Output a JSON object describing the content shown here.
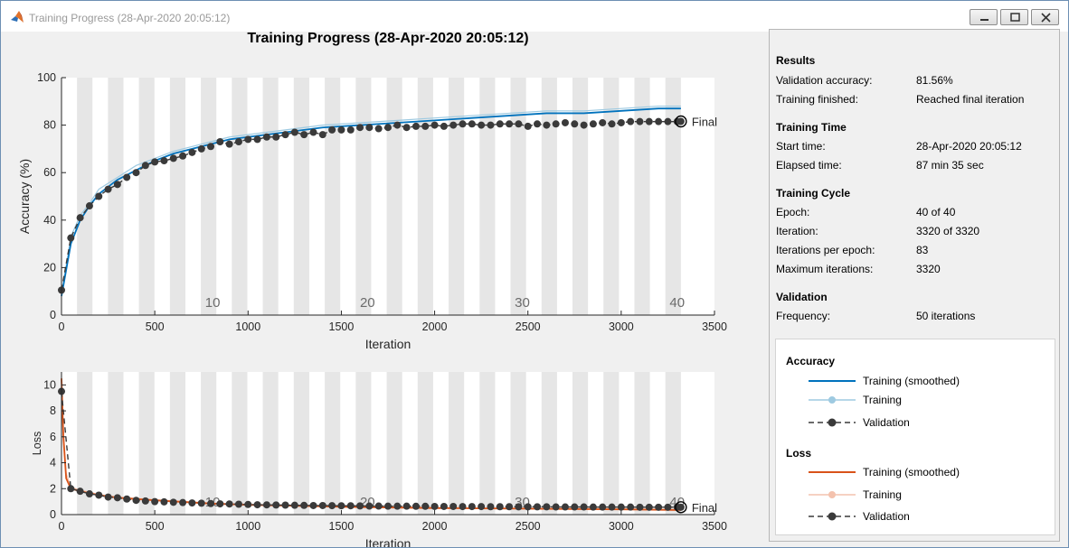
{
  "window": {
    "title": "Training Progress (28-Apr-2020 20:05:12)",
    "controls": [
      "minimize",
      "maximize",
      "close"
    ]
  },
  "figure": {
    "title": "Training Progress (28-Apr-2020 20:05:12)"
  },
  "colors": {
    "accuracy_smoothed": "#0072bd",
    "accuracy_raw": "#9ecae1",
    "validation": "#3a3a3a",
    "loss_smoothed": "#d95319",
    "loss_raw": "#f4c2ad",
    "epoch_band": "#e6e6e6"
  },
  "chart_data": [
    {
      "type": "line",
      "xlabel": "Iteration",
      "ylabel": "Accuracy (%)",
      "xlim": [
        0,
        3500
      ],
      "ylim": [
        0,
        100
      ],
      "xticks": [
        "0",
        "500",
        "1000",
        "1500",
        "2000",
        "2500",
        "3000",
        "3500"
      ],
      "yticks": [
        "0",
        "20",
        "40",
        "60",
        "80",
        "100"
      ],
      "epoch_labels": [
        "10",
        "20",
        "30",
        "40"
      ],
      "epoch_label_iterations": [
        810,
        1640,
        2470,
        3300
      ],
      "final_label": "Final",
      "series": [
        {
          "name": "Training (smoothed)",
          "x": [
            0,
            50,
            100,
            150,
            200,
            300,
            400,
            500,
            600,
            700,
            800,
            900,
            1000,
            1200,
            1400,
            1600,
            1800,
            2000,
            2200,
            2400,
            2600,
            2800,
            3000,
            3200,
            3320
          ],
          "values": [
            8,
            30,
            40,
            46,
            51,
            57,
            61,
            65,
            68,
            70,
            72,
            74,
            75,
            77,
            79,
            80,
            81,
            82,
            83,
            84,
            85,
            85,
            86,
            87,
            87
          ]
        },
        {
          "name": "Training",
          "x": [
            0,
            50,
            100,
            150,
            200,
            300,
            400,
            500,
            600,
            700,
            800,
            900,
            1000,
            1200,
            1400,
            1600,
            1800,
            2000,
            2200,
            2400,
            2600,
            2800,
            3000,
            3200,
            3320
          ],
          "values": [
            9,
            33,
            42,
            47,
            53,
            58,
            63,
            66,
            69,
            71,
            73,
            75,
            76,
            78,
            80,
            81,
            82,
            83,
            84,
            85,
            86,
            86,
            87,
            88,
            88
          ]
        },
        {
          "name": "Validation",
          "x": [
            0,
            50,
            100,
            150,
            200,
            250,
            300,
            350,
            400,
            450,
            500,
            550,
            600,
            650,
            700,
            750,
            800,
            850,
            900,
            950,
            1000,
            1050,
            1100,
            1150,
            1200,
            1250,
            1300,
            1350,
            1400,
            1450,
            1500,
            1550,
            1600,
            1650,
            1700,
            1750,
            1800,
            1850,
            1900,
            1950,
            2000,
            2050,
            2100,
            2150,
            2200,
            2250,
            2300,
            2350,
            2400,
            2450,
            2500,
            2550,
            2600,
            2650,
            2700,
            2750,
            2800,
            2850,
            2900,
            2950,
            3000,
            3050,
            3100,
            3150,
            3200,
            3250,
            3300,
            3320
          ],
          "values": [
            10.5,
            32.5,
            41,
            46,
            50,
            53,
            55,
            58,
            60,
            63,
            64.5,
            65,
            66,
            67,
            68.5,
            70,
            71,
            73,
            72,
            73,
            74,
            74,
            75,
            75,
            76,
            77,
            76,
            77,
            76,
            78,
            78,
            78,
            79,
            79,
            78.5,
            79,
            80,
            79,
            79.5,
            79.5,
            80,
            79.5,
            80,
            80.5,
            80.5,
            80,
            80,
            80.5,
            80.5,
            80.5,
            79.5,
            80.5,
            80,
            80.5,
            81,
            80.5,
            80,
            80.5,
            81,
            80.5,
            81,
            81.5,
            81.5,
            81.5,
            81.5,
            81.5,
            81.5,
            81.56
          ]
        }
      ]
    },
    {
      "type": "line",
      "xlabel": "Iteration",
      "ylabel": "Loss",
      "xlim": [
        0,
        3500
      ],
      "ylim": [
        0,
        11
      ],
      "xticks": [
        "0",
        "500",
        "1000",
        "1500",
        "2000",
        "2500",
        "3000",
        "3500"
      ],
      "yticks": [
        "0",
        "2",
        "4",
        "6",
        "8",
        "10"
      ],
      "epoch_labels": [
        "10",
        "20",
        "30",
        "40"
      ],
      "epoch_label_iterations": [
        810,
        1640,
        2470,
        3300
      ],
      "final_label": "Final",
      "series": [
        {
          "name": "Training (smoothed)",
          "x": [
            0,
            10,
            25,
            50,
            100,
            200,
            300,
            500,
            800,
            1000,
            1500,
            2000,
            2500,
            3000,
            3320
          ],
          "values": [
            10.5,
            6,
            2.8,
            2.0,
            1.8,
            1.5,
            1.3,
            1.1,
            0.85,
            0.75,
            0.6,
            0.5,
            0.45,
            0.4,
            0.35
          ]
        },
        {
          "name": "Training",
          "x": [
            0,
            10,
            25,
            50,
            100,
            200,
            300,
            500,
            800,
            1000,
            1500,
            2000,
            2500,
            3000,
            3320
          ],
          "values": [
            10.5,
            6.5,
            3.2,
            2.1,
            1.9,
            1.55,
            1.35,
            1.15,
            0.9,
            0.8,
            0.65,
            0.55,
            0.5,
            0.45,
            0.4
          ]
        },
        {
          "name": "Validation",
          "x": [
            0,
            50,
            100,
            150,
            200,
            250,
            300,
            350,
            400,
            450,
            500,
            550,
            600,
            650,
            700,
            750,
            800,
            850,
            900,
            950,
            1000,
            1050,
            1100,
            1150,
            1200,
            1250,
            1300,
            1350,
            1400,
            1450,
            1500,
            1550,
            1600,
            1650,
            1700,
            1750,
            1800,
            1850,
            1900,
            1950,
            2000,
            2050,
            2100,
            2150,
            2200,
            2250,
            2300,
            2350,
            2400,
            2450,
            2500,
            2550,
            2600,
            2650,
            2700,
            2750,
            2800,
            2850,
            2900,
            2950,
            3000,
            3050,
            3100,
            3150,
            3200,
            3250,
            3300,
            3320
          ],
          "values": [
            9.5,
            2.0,
            1.8,
            1.6,
            1.5,
            1.35,
            1.3,
            1.2,
            1.1,
            1.05,
            1.0,
            0.98,
            0.95,
            0.93,
            0.9,
            0.88,
            0.85,
            0.83,
            0.82,
            0.8,
            0.78,
            0.76,
            0.75,
            0.74,
            0.73,
            0.72,
            0.71,
            0.7,
            0.7,
            0.69,
            0.68,
            0.68,
            0.67,
            0.66,
            0.66,
            0.65,
            0.65,
            0.65,
            0.64,
            0.64,
            0.63,
            0.63,
            0.63,
            0.62,
            0.62,
            0.62,
            0.61,
            0.61,
            0.61,
            0.6,
            0.6,
            0.6,
            0.6,
            0.59,
            0.59,
            0.59,
            0.59,
            0.58,
            0.58,
            0.58,
            0.58,
            0.58,
            0.57,
            0.57,
            0.57,
            0.57,
            0.57,
            0.57
          ]
        }
      ]
    }
  ],
  "results": {
    "section_results": "Results",
    "validation_accuracy_label": "Validation accuracy:",
    "validation_accuracy_value": "81.56%",
    "training_finished_label": "Training finished:",
    "training_finished_value": "Reached final iteration",
    "section_time": "Training Time",
    "start_time_label": "Start time:",
    "start_time_value": "28-Apr-2020 20:05:12",
    "elapsed_label": "Elapsed time:",
    "elapsed_value": "87 min 35 sec",
    "section_cycle": "Training Cycle",
    "epoch_label": "Epoch:",
    "epoch_value": "40 of 40",
    "iteration_label": "Iteration:",
    "iteration_value": "3320 of 3320",
    "ipe_label": "Iterations per epoch:",
    "ipe_value": "83",
    "max_iter_label": "Maximum iterations:",
    "max_iter_value": "3320",
    "section_validation": "Validation",
    "frequency_label": "Frequency:",
    "frequency_value": "50 iterations"
  },
  "legend": {
    "accuracy_title": "Accuracy",
    "loss_title": "Loss",
    "smoothed": "Training (smoothed)",
    "training": "Training",
    "validation": "Validation"
  }
}
